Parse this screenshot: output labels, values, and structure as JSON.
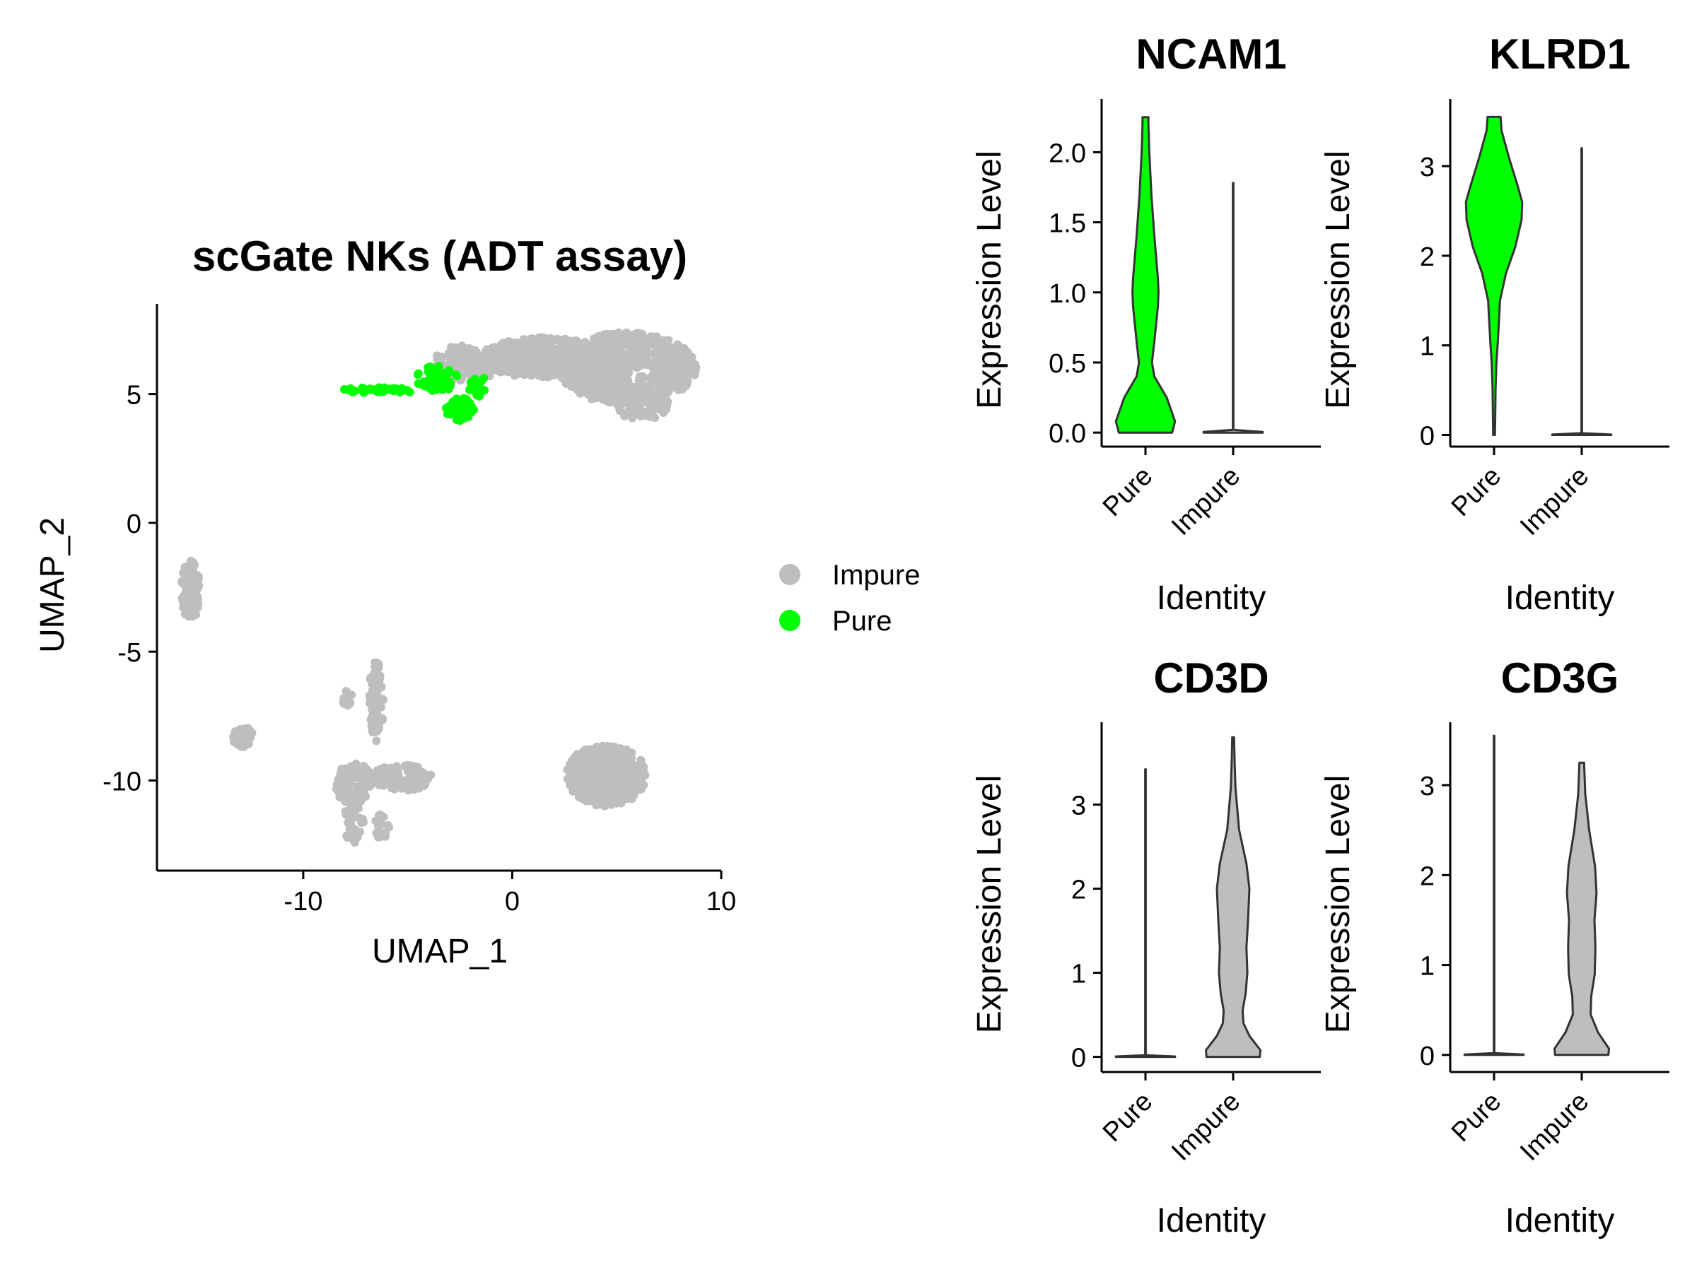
{
  "colors": {
    "pure": "#00FF00",
    "impure": "#BEBEBE",
    "outline": "#333333",
    "axis": "#000000"
  },
  "chart_data": [
    {
      "type": "scatter",
      "title": "scGate NKs (ADT assay)",
      "xlabel": "UMAP_1",
      "ylabel": "UMAP_2",
      "xlim": [
        -17,
        10
      ],
      "ylim": [
        -13.5,
        8.5
      ],
      "xticks": [
        -10,
        0,
        10
      ],
      "yticks": [
        5,
        0,
        -5,
        -10
      ],
      "xtick_labels": [
        "-10",
        "0",
        "10"
      ],
      "ytick_labels": [
        "5",
        "0",
        "-5",
        "-10"
      ],
      "grid": false,
      "legend": {
        "placement": "right",
        "entries": [
          {
            "label": "Impure",
            "color": "#BEBEBE"
          },
          {
            "label": "Pure",
            "color": "#00FF00"
          }
        ]
      },
      "series": [
        {
          "name": "Impure",
          "clusters": [
            {
              "cx": 5.5,
              "cy": 6.0,
              "rx": 3.3,
              "ry": 1.4,
              "n": 700
            },
            {
              "cx": 1.5,
              "cy": 6.4,
              "rx": 3.0,
              "ry": 0.8,
              "n": 500
            },
            {
              "cx": -2.2,
              "cy": 6.2,
              "rx": 1.6,
              "ry": 0.7,
              "n": 150
            },
            {
              "cx": 6.2,
              "cy": 4.6,
              "rx": 1.3,
              "ry": 0.6,
              "n": 80
            },
            {
              "cx": -15.4,
              "cy": -2.6,
              "rx": 0.45,
              "ry": 1.2,
              "n": 90
            },
            {
              "cx": -12.9,
              "cy": -8.3,
              "rx": 0.5,
              "ry": 0.4,
              "n": 40
            },
            {
              "cx": 4.5,
              "cy": -9.8,
              "rx": 1.9,
              "ry": 1.2,
              "n": 500
            },
            {
              "cx": -6.5,
              "cy": -6.9,
              "rx": 0.35,
              "ry": 1.6,
              "n": 70
            },
            {
              "cx": -7.9,
              "cy": -6.8,
              "rx": 0.25,
              "ry": 0.3,
              "n": 10
            },
            {
              "cx": -7.6,
              "cy": -10.1,
              "rx": 0.9,
              "ry": 0.8,
              "n": 120
            },
            {
              "cx": -5.3,
              "cy": -9.9,
              "rx": 1.5,
              "ry": 0.5,
              "n": 120
            },
            {
              "cx": -7.6,
              "cy": -11.7,
              "rx": 0.5,
              "ry": 0.8,
              "n": 40
            },
            {
              "cx": -6.3,
              "cy": -11.8,
              "rx": 0.4,
              "ry": 0.5,
              "n": 20
            }
          ]
        },
        {
          "name": "Pure",
          "clusters": [
            {
              "cx": -6.3,
              "cy": 5.15,
              "rx": 1.8,
              "ry": 0.12,
              "n": 40
            },
            {
              "cx": -3.6,
              "cy": 5.6,
              "rx": 1.0,
              "ry": 0.5,
              "n": 70
            },
            {
              "cx": -2.5,
              "cy": 4.4,
              "rx": 0.7,
              "ry": 0.45,
              "n": 60
            },
            {
              "cx": -1.6,
              "cy": 5.3,
              "rx": 0.5,
              "ry": 0.4,
              "n": 20
            }
          ]
        }
      ]
    },
    {
      "type": "violin",
      "title": "NCAM1",
      "xlabel": "Identity",
      "ylabel": "Expression Level",
      "categories": [
        "Pure",
        "Impure"
      ],
      "ylim": [
        -0.1,
        2.38
      ],
      "yticks": [
        0.0,
        0.5,
        1.0,
        1.5,
        2.0
      ],
      "ytick_labels": [
        "0.0",
        "0.5",
        "1.0",
        "1.5",
        "2.0"
      ],
      "series": [
        {
          "category": "Pure",
          "color": "#00FF00",
          "min": 0,
          "max": 2.25,
          "density": [
            [
              0,
              0.9
            ],
            [
              0.08,
              1
            ],
            [
              0.25,
              0.72
            ],
            [
              0.4,
              0.3
            ],
            [
              0.5,
              0.22
            ],
            [
              0.65,
              0.3
            ],
            [
              0.9,
              0.42
            ],
            [
              1.0,
              0.44
            ],
            [
              1.1,
              0.42
            ],
            [
              1.4,
              0.3
            ],
            [
              1.7,
              0.2
            ],
            [
              2.0,
              0.13
            ],
            [
              2.2,
              0.1
            ],
            [
              2.25,
              0.1
            ]
          ]
        },
        {
          "category": "Impure",
          "color": "#BEBEBE",
          "min": 0,
          "max": 1.78,
          "density": [
            [
              0,
              1
            ],
            [
              0.005,
              1
            ],
            [
              0.02,
              0.01
            ],
            [
              1.78,
              0.01
            ]
          ]
        }
      ]
    },
    {
      "type": "violin",
      "title": "KLRD1",
      "xlabel": "Identity",
      "ylabel": "Expression Level",
      "categories": [
        "Pure",
        "Impure"
      ],
      "ylim": [
        -0.13,
        3.75
      ],
      "yticks": [
        0,
        1,
        2,
        3
      ],
      "ytick_labels": [
        "0",
        "1",
        "2",
        "3"
      ],
      "series": [
        {
          "category": "Pure",
          "color": "#00FF00",
          "min": 0,
          "max": 3.55,
          "density": [
            [
              0,
              0.03
            ],
            [
              0.5,
              0.05
            ],
            [
              0.8,
              0.08
            ],
            [
              1.05,
              0.13
            ],
            [
              1.3,
              0.17
            ],
            [
              1.5,
              0.2
            ],
            [
              1.8,
              0.4
            ],
            [
              2.1,
              0.72
            ],
            [
              2.4,
              0.93
            ],
            [
              2.6,
              0.95
            ],
            [
              2.8,
              0.78
            ],
            [
              3.1,
              0.5
            ],
            [
              3.4,
              0.25
            ],
            [
              3.55,
              0.22
            ]
          ]
        },
        {
          "category": "Impure",
          "color": "#BEBEBE",
          "min": 0,
          "max": 3.2,
          "density": [
            [
              0,
              1
            ],
            [
              0.005,
              1
            ],
            [
              0.02,
              0.01
            ],
            [
              3.2,
              0.01
            ]
          ]
        }
      ]
    },
    {
      "type": "violin",
      "title": "CD3D",
      "xlabel": "Identity",
      "ylabel": "Expression Level",
      "categories": [
        "Pure",
        "Impure"
      ],
      "ylim": [
        -0.18,
        3.98
      ],
      "yticks": [
        0,
        1,
        2,
        3
      ],
      "ytick_labels": [
        "0",
        "1",
        "2",
        "3"
      ],
      "series": [
        {
          "category": "Pure",
          "color": "#00FF00",
          "min": 0,
          "max": 3.42,
          "density": [
            [
              0,
              1
            ],
            [
              0.005,
              1
            ],
            [
              0.02,
              0.01
            ],
            [
              3.42,
              0.01
            ]
          ]
        },
        {
          "category": "Impure",
          "color": "#BEBEBE",
          "min": 0,
          "max": 3.8,
          "density": [
            [
              0,
              0.9
            ],
            [
              0.08,
              0.92
            ],
            [
              0.25,
              0.55
            ],
            [
              0.4,
              0.35
            ],
            [
              0.55,
              0.32
            ],
            [
              0.75,
              0.42
            ],
            [
              1.0,
              0.48
            ],
            [
              1.3,
              0.45
            ],
            [
              1.6,
              0.5
            ],
            [
              2.0,
              0.55
            ],
            [
              2.3,
              0.45
            ],
            [
              2.7,
              0.2
            ],
            [
              3.2,
              0.08
            ],
            [
              3.5,
              0.05
            ],
            [
              3.8,
              0.03
            ]
          ]
        }
      ]
    },
    {
      "type": "violin",
      "title": "CD3G",
      "xlabel": "Identity",
      "ylabel": "Expression Level",
      "categories": [
        "Pure",
        "Impure"
      ],
      "ylim": [
        -0.19,
        3.7
      ],
      "yticks": [
        0,
        1,
        2,
        3
      ],
      "ytick_labels": [
        "0",
        "1",
        "2",
        "3"
      ],
      "series": [
        {
          "category": "Pure",
          "color": "#00FF00",
          "min": 0,
          "max": 3.55,
          "density": [
            [
              0,
              1
            ],
            [
              0.005,
              1
            ],
            [
              0.02,
              0.01
            ],
            [
              3.55,
              0.01
            ]
          ]
        },
        {
          "category": "Impure",
          "color": "#BEBEBE",
          "min": 0,
          "max": 3.25,
          "density": [
            [
              0,
              0.9
            ],
            [
              0.07,
              0.92
            ],
            [
              0.25,
              0.55
            ],
            [
              0.45,
              0.3
            ],
            [
              0.65,
              0.32
            ],
            [
              0.9,
              0.44
            ],
            [
              1.2,
              0.46
            ],
            [
              1.5,
              0.43
            ],
            [
              1.8,
              0.5
            ],
            [
              2.1,
              0.45
            ],
            [
              2.5,
              0.25
            ],
            [
              2.9,
              0.12
            ],
            [
              3.25,
              0.08
            ]
          ]
        }
      ]
    }
  ]
}
